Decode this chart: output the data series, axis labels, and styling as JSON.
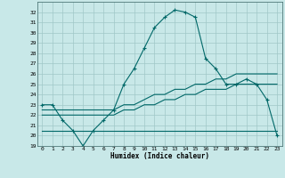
{
  "title": "",
  "xlabel": "Humidex (Indice chaleur)",
  "ylabel": "",
  "background_color": "#c8e8e8",
  "grid_color": "#a0c8c8",
  "line_color": "#006868",
  "xlim": [
    -0.5,
    23.5
  ],
  "ylim": [
    19,
    33
  ],
  "yticks": [
    19,
    20,
    21,
    22,
    23,
    24,
    25,
    26,
    27,
    28,
    29,
    30,
    31,
    32
  ],
  "xticks": [
    0,
    1,
    2,
    3,
    4,
    5,
    6,
    7,
    8,
    9,
    10,
    11,
    12,
    13,
    14,
    15,
    16,
    17,
    18,
    19,
    20,
    21,
    22,
    23
  ],
  "line1_x": [
    0,
    1,
    2,
    3,
    4,
    5,
    6,
    7,
    8,
    9,
    10,
    11,
    12,
    13,
    14,
    15,
    16,
    17,
    18,
    19,
    20,
    21,
    22,
    23
  ],
  "line1_y": [
    23.0,
    23.0,
    21.5,
    20.5,
    19.0,
    20.5,
    21.5,
    22.5,
    25.0,
    26.5,
    28.5,
    30.5,
    31.5,
    32.2,
    32.0,
    31.5,
    27.5,
    26.5,
    25.0,
    25.0,
    25.5,
    25.0,
    23.5,
    20.0
  ],
  "line2_x": [
    0,
    1,
    2,
    3,
    4,
    5,
    6,
    7,
    8,
    9,
    10,
    11,
    12,
    13,
    14,
    15,
    16,
    17,
    18,
    19,
    20,
    21,
    22,
    23
  ],
  "line2_y": [
    22.5,
    22.5,
    22.5,
    22.5,
    22.5,
    22.5,
    22.5,
    22.5,
    23.0,
    23.0,
    23.5,
    24.0,
    24.0,
    24.5,
    24.5,
    25.0,
    25.0,
    25.5,
    25.5,
    26.0,
    26.0,
    26.0,
    26.0,
    26.0
  ],
  "line3_x": [
    0,
    1,
    2,
    3,
    4,
    5,
    6,
    7,
    8,
    9,
    10,
    11,
    12,
    13,
    14,
    15,
    16,
    17,
    18,
    19,
    20,
    21,
    22,
    23
  ],
  "line3_y": [
    22.0,
    22.0,
    22.0,
    22.0,
    22.0,
    22.0,
    22.0,
    22.0,
    22.5,
    22.5,
    23.0,
    23.0,
    23.5,
    23.5,
    24.0,
    24.0,
    24.5,
    24.5,
    24.5,
    25.0,
    25.0,
    25.0,
    25.0,
    25.0
  ],
  "line4_x": [
    0,
    1,
    2,
    3,
    4,
    5,
    6,
    7,
    8,
    9,
    10,
    11,
    12,
    13,
    14,
    15,
    16,
    17,
    18,
    19,
    20,
    21,
    22,
    23
  ],
  "line4_y": [
    20.5,
    20.5,
    20.5,
    20.5,
    20.5,
    20.5,
    20.5,
    20.5,
    20.5,
    20.5,
    20.5,
    20.5,
    20.5,
    20.5,
    20.5,
    20.5,
    20.5,
    20.5,
    20.5,
    20.5,
    20.5,
    20.5,
    20.5,
    20.5
  ]
}
